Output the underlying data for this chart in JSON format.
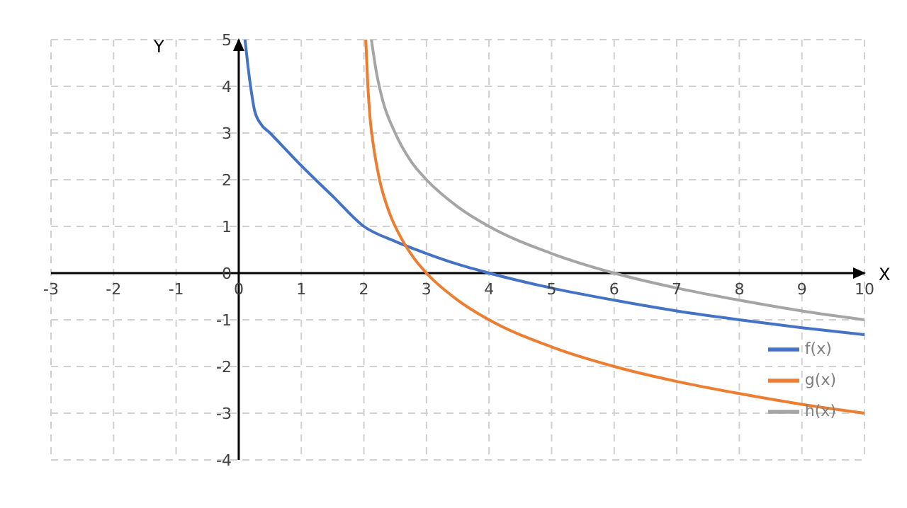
{
  "chart_data": {
    "type": "line",
    "xlabel": "X",
    "ylabel": "Y",
    "xlim": [
      -3,
      10
    ],
    "xticks": [
      -3,
      -2,
      -1,
      0,
      1,
      2,
      3,
      4,
      5,
      6,
      7,
      8,
      9,
      10
    ],
    "ylim": [
      -4,
      5
    ],
    "yticks": [
      -4,
      -3,
      -2,
      -1,
      0,
      1,
      2,
      3,
      4,
      5
    ],
    "grid": true,
    "legend": "bottom right",
    "marker": "none",
    "line_style": "solid",
    "series": [
      {
        "name": "f(x)",
        "color": "#4472c4",
        "x": [
          0.1,
          0.15,
          0.2,
          0.25,
          0.35,
          0.5,
          0.75,
          1,
          1.5,
          2,
          2.5,
          3,
          3.5,
          4,
          5,
          6,
          7,
          8,
          9,
          10
        ],
        "values": [
          5,
          4.4,
          3.9,
          3.5,
          3.2,
          3,
          2.65,
          2.3,
          1.65,
          1,
          0.68,
          0.42,
          0.19,
          0,
          -0.32,
          -0.58,
          -0.81,
          -1,
          -1.17,
          -1.32
        ]
      },
      {
        "name": "g(x)",
        "color": "#ed7d31",
        "x": [
          2.03,
          2.06,
          2.1,
          2.15,
          2.25,
          2.4,
          2.6,
          2.8,
          3,
          3.5,
          4,
          5,
          6,
          7,
          8,
          9,
          10
        ],
        "values": [
          5,
          4.1,
          3.3,
          2.75,
          2,
          1.32,
          0.74,
          0.32,
          0,
          -0.58,
          -1,
          -1.58,
          -2,
          -2.32,
          -2.58,
          -2.81,
          -3
        ]
      },
      {
        "name": "h(x)",
        "color": "#a5a5a5",
        "x": [
          2.12,
          2.2,
          2.3,
          2.5,
          2.75,
          3,
          3.5,
          4,
          5,
          6,
          7,
          8,
          9,
          10
        ],
        "values": [
          5,
          4.3,
          3.7,
          3,
          2.4,
          2,
          1.42,
          1,
          0.42,
          0,
          -0.32,
          -0.58,
          -0.81,
          -1
        ]
      }
    ]
  }
}
